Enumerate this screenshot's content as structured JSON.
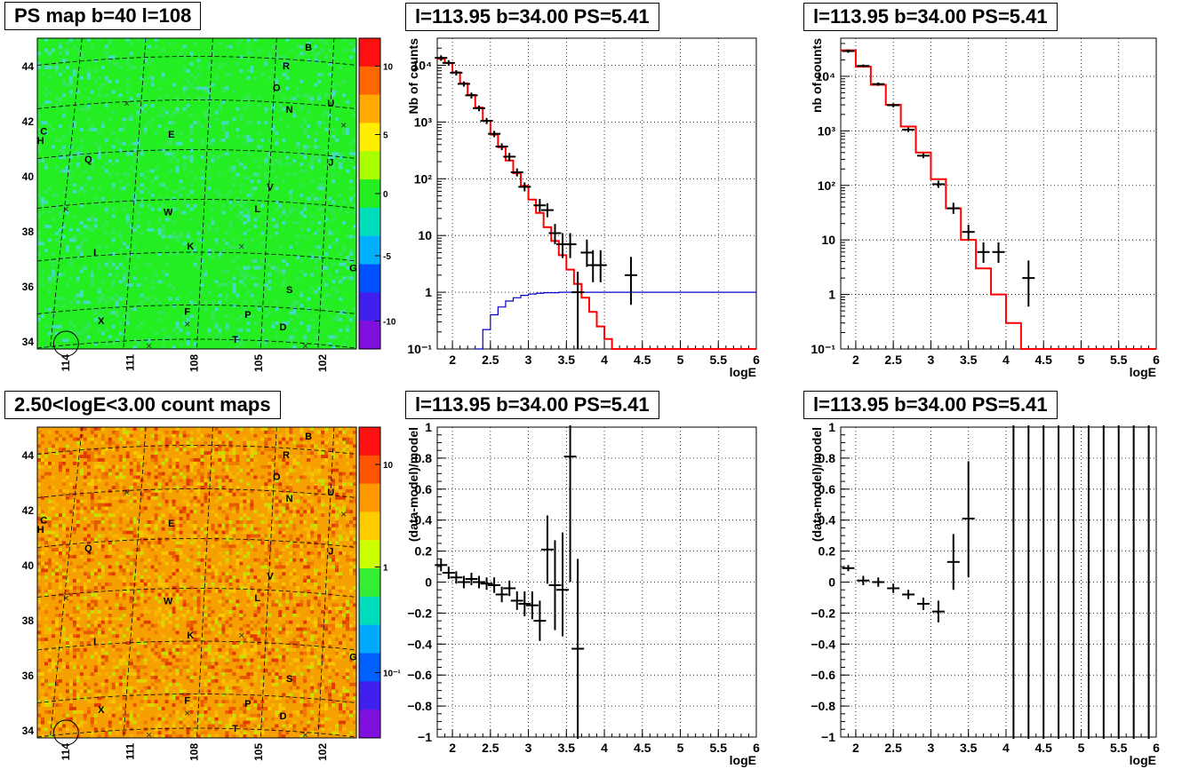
{
  "panels": {
    "ps_map": {
      "title": "PS map b=40 l=108",
      "yticks": [
        "34",
        "36",
        "38",
        "40",
        "42",
        "44"
      ],
      "xticks": [
        "114",
        "111",
        "108",
        "105",
        "102"
      ],
      "colorbar_ticks": [
        "10",
        "5",
        "0",
        "-5",
        "-10"
      ],
      "base_color": "#22ee22"
    },
    "count_map": {
      "title": "2.50<logE<3.00 count maps",
      "yticks": [
        "34",
        "36",
        "38",
        "40",
        "42",
        "44"
      ],
      "xticks": [
        "114",
        "111",
        "108",
        "105",
        "102"
      ],
      "colorbar_ticks": [
        "10",
        "1",
        "10⁻¹"
      ],
      "base_color": "#f5a000"
    },
    "spectrum1": {
      "title": "l=113.95 b=34.00 PS=5.41"
    },
    "spectrum2": {
      "title": "l=113.95 b=34.00 PS=5.41"
    },
    "resid1": {
      "title": "l=113.95 b=34.00 PS=5.41"
    },
    "resid2": {
      "title": "l=113.95 b=34.00 PS=5.41"
    }
  },
  "source_labels": [
    {
      "t": "B",
      "gx": 0.85,
      "gy": 0.04
    },
    {
      "t": "R",
      "gx": 0.78,
      "gy": 0.1
    },
    {
      "t": "O",
      "gx": 0.75,
      "gy": 0.17
    },
    {
      "t": "N",
      "gx": 0.79,
      "gy": 0.24
    },
    {
      "t": "U",
      "gx": 0.92,
      "gy": 0.22
    },
    {
      "t": "C",
      "gx": 0.02,
      "gy": 0.31
    },
    {
      "t": "H",
      "gx": 0.01,
      "gy": 0.34
    },
    {
      "t": "E",
      "gx": 0.42,
      "gy": 0.32
    },
    {
      "t": "Q",
      "gx": 0.16,
      "gy": 0.4
    },
    {
      "t": "J",
      "gx": 0.92,
      "gy": 0.41
    },
    {
      "t": "V",
      "gx": 0.73,
      "gy": 0.49
    },
    {
      "t": "W",
      "gx": 0.41,
      "gy": 0.57
    },
    {
      "t": "L",
      "gx": 0.69,
      "gy": 0.56
    },
    {
      "t": "I",
      "gx": 0.18,
      "gy": 0.7
    },
    {
      "t": "K",
      "gx": 0.48,
      "gy": 0.68
    },
    {
      "t": "G",
      "gx": 0.99,
      "gy": 0.75
    },
    {
      "t": "S",
      "gx": 0.79,
      "gy": 0.82
    },
    {
      "t": "F",
      "gx": 0.47,
      "gy": 0.89
    },
    {
      "t": "P",
      "gx": 0.66,
      "gy": 0.9
    },
    {
      "t": "X",
      "gx": 0.2,
      "gy": 0.92
    },
    {
      "t": "D",
      "gx": 0.77,
      "gy": 0.94
    },
    {
      "t": "T",
      "gx": 0.62,
      "gy": 0.98
    }
  ],
  "chart_data": [
    {
      "type": "line",
      "panel": "spectrum1",
      "title": "l=113.95 b=34.00 PS=5.41",
      "xlabel": "logE",
      "ylabel": "Nb of counts",
      "xlim": [
        1.8,
        6
      ],
      "ylim": [
        0.1,
        30000
      ],
      "yscale": "log",
      "xticks": [
        2,
        2.5,
        3,
        3.5,
        4,
        4.5,
        5,
        5.5,
        6
      ],
      "yticks": [
        {
          "v": 0.1,
          "label": "10⁻¹"
        },
        {
          "v": 1,
          "label": "1"
        },
        {
          "v": 10,
          "label": "10"
        },
        {
          "v": 100,
          "label": "10²"
        },
        {
          "v": 1000,
          "label": "10³"
        },
        {
          "v": 10000,
          "label": "10⁴"
        }
      ],
      "grid": true,
      "series": [
        {
          "style": "step",
          "color": "#ff0000",
          "bins": [
            [
              1.8,
              1.9,
              13000
            ],
            [
              1.9,
              2.0,
              11000
            ],
            [
              2.0,
              2.1,
              7500
            ],
            [
              2.1,
              2.2,
              4800
            ],
            [
              2.2,
              2.3,
              3000
            ],
            [
              2.3,
              2.4,
              1800
            ],
            [
              2.4,
              2.5,
              1050
            ],
            [
              2.5,
              2.6,
              600
            ],
            [
              2.6,
              2.7,
              360
            ],
            [
              2.7,
              2.8,
              210
            ],
            [
              2.8,
              2.9,
              125
            ],
            [
              2.9,
              3.0,
              75
            ],
            [
              3.0,
              3.1,
              43
            ],
            [
              3.1,
              3.2,
              25
            ],
            [
              3.2,
              3.3,
              14
            ],
            [
              3.3,
              3.4,
              8
            ],
            [
              3.4,
              3.5,
              4.5
            ],
            [
              3.5,
              3.6,
              2.5
            ],
            [
              3.6,
              3.7,
              1.4
            ],
            [
              3.7,
              3.8,
              0.8
            ],
            [
              3.8,
              3.9,
              0.45
            ],
            [
              3.9,
              4.0,
              0.25
            ],
            [
              4.0,
              4.1,
              0.15
            ],
            [
              4.1,
              4.2,
              0.1
            ],
            [
              4.2,
              6.0,
              0.1
            ]
          ]
        },
        {
          "style": "step",
          "color": "#0000cc",
          "bins": [
            [
              2.3,
              2.4,
              0.1
            ],
            [
              2.4,
              2.5,
              0.22
            ],
            [
              2.5,
              2.6,
              0.4
            ],
            [
              2.6,
              2.7,
              0.55
            ],
            [
              2.7,
              2.8,
              0.7
            ],
            [
              2.8,
              2.9,
              0.8
            ],
            [
              2.9,
              3.0,
              0.88
            ],
            [
              3.0,
              3.1,
              0.93
            ],
            [
              3.1,
              3.2,
              0.96
            ],
            [
              3.2,
              3.4,
              0.98
            ],
            [
              3.4,
              6.0,
              1.0
            ]
          ]
        },
        {
          "style": "points",
          "color": "#000000",
          "points": [
            [
              1.85,
              13500,
              12000,
              15000
            ],
            [
              1.95,
              11000,
              9800,
              12300
            ],
            [
              2.05,
              7400,
              6600,
              8200
            ],
            [
              2.15,
              4700,
              4200,
              5200
            ],
            [
              2.25,
              2950,
              2600,
              3300
            ],
            [
              2.35,
              1750,
              1550,
              1950
            ],
            [
              2.45,
              1050,
              920,
              1180
            ],
            [
              2.55,
              620,
              540,
              700
            ],
            [
              2.65,
              370,
              320,
              420
            ],
            [
              2.75,
              245,
              205,
              285
            ],
            [
              2.85,
              130,
              110,
              152
            ],
            [
              2.95,
              72,
              60,
              86
            ],
            [
              3.15,
              34,
              26,
              44
            ],
            [
              3.25,
              28,
              21,
              37
            ],
            [
              3.35,
              11,
              7,
              16
            ],
            [
              3.45,
              7,
              4,
              11
            ],
            [
              3.55,
              7,
              4,
              11
            ],
            [
              3.65,
              1.0,
              0.1,
              2.3
            ],
            [
              3.77,
              5,
              2.8,
              8.5
            ],
            [
              3.85,
              3,
              1.5,
              5.5
            ],
            [
              3.95,
              3,
              1.5,
              5.5
            ],
            [
              4.35,
              2,
              0.6,
              4.2
            ]
          ]
        }
      ]
    },
    {
      "type": "line",
      "panel": "spectrum2",
      "title": "l=113.95 b=34.00 PS=5.41",
      "xlabel": "logE",
      "ylabel": "nb of counts",
      "xlim": [
        1.8,
        6
      ],
      "ylim": [
        0.1,
        50000
      ],
      "yscale": "log",
      "xticks": [
        2,
        2.5,
        3,
        3.5,
        4,
        4.5,
        5,
        5.5,
        6
      ],
      "yticks": [
        {
          "v": 0.1,
          "label": "10⁻¹"
        },
        {
          "v": 1,
          "label": "1"
        },
        {
          "v": 10,
          "label": "10"
        },
        {
          "v": 100,
          "label": "10²"
        },
        {
          "v": 1000,
          "label": "10³"
        },
        {
          "v": 10000,
          "label": "10⁴"
        }
      ],
      "grid": true,
      "series": [
        {
          "style": "step",
          "color": "#ff0000",
          "bins": [
            [
              1.8,
              2.0,
              30000
            ],
            [
              2.0,
              2.2,
              15000
            ],
            [
              2.2,
              2.4,
              7000
            ],
            [
              2.4,
              2.6,
              3000
            ],
            [
              2.6,
              2.8,
              1200
            ],
            [
              2.8,
              3.0,
              400
            ],
            [
              3.0,
              3.2,
              130
            ],
            [
              3.2,
              3.4,
              38
            ],
            [
              3.4,
              3.6,
              10
            ],
            [
              3.6,
              3.8,
              3
            ],
            [
              3.8,
              4.0,
              1
            ],
            [
              4.0,
              4.2,
              0.3
            ],
            [
              4.2,
              6.0,
              0.1
            ]
          ]
        },
        {
          "style": "points",
          "color": "#000000",
          "points": [
            [
              1.9,
              29000,
              27000,
              31000
            ],
            [
              2.1,
              15500,
              14500,
              16500
            ],
            [
              2.3,
              7200,
              6700,
              7700
            ],
            [
              2.5,
              2950,
              2700,
              3200
            ],
            [
              2.7,
              1050,
              950,
              1150
            ],
            [
              2.9,
              350,
              315,
              390
            ],
            [
              3.1,
              105,
              90,
              122
            ],
            [
              3.3,
              38,
              30,
              48
            ],
            [
              3.5,
              14,
              10,
              19
            ],
            [
              3.7,
              6,
              3.8,
              9
            ],
            [
              3.9,
              6,
              3.8,
              9
            ],
            [
              4.3,
              2,
              0.6,
              4.2
            ]
          ]
        }
      ]
    },
    {
      "type": "scatter",
      "panel": "resid1",
      "title": "l=113.95 b=34.00 PS=5.41",
      "xlabel": "logE",
      "ylabel": "(data-model)/model",
      "xlim": [
        1.8,
        6
      ],
      "ylim": [
        -1,
        1
      ],
      "xticks": [
        2,
        2.5,
        3,
        3.5,
        4,
        4.5,
        5,
        5.5,
        6
      ],
      "yticks": [
        {
          "v": -1,
          "label": "−1"
        },
        {
          "v": -0.8,
          "label": "−0.8"
        },
        {
          "v": -0.6,
          "label": "−0.6"
        },
        {
          "v": -0.4,
          "label": "−0.4"
        },
        {
          "v": -0.2,
          "label": "−0.2"
        },
        {
          "v": 0,
          "label": "0"
        },
        {
          "v": 0.2,
          "label": "0.2"
        },
        {
          "v": 0.4,
          "label": "0.4"
        },
        {
          "v": 0.6,
          "label": "0.6"
        },
        {
          "v": 0.8,
          "label": "0.8"
        },
        {
          "v": 1,
          "label": "1"
        }
      ],
      "grid": true,
      "series": [
        {
          "style": "points",
          "color": "#000000",
          "points": [
            [
              1.85,
              0.11,
              0.07,
              0.15
            ],
            [
              1.95,
              0.06,
              0.02,
              0.1
            ],
            [
              2.05,
              0.03,
              -0.01,
              0.07
            ],
            [
              2.15,
              0.0,
              -0.04,
              0.04
            ],
            [
              2.25,
              0.02,
              -0.02,
              0.06
            ],
            [
              2.35,
              0.0,
              -0.04,
              0.04
            ],
            [
              2.45,
              -0.01,
              -0.05,
              0.03
            ],
            [
              2.55,
              -0.02,
              -0.07,
              0.03
            ],
            [
              2.65,
              -0.08,
              -0.13,
              -0.03
            ],
            [
              2.75,
              -0.04,
              -0.09,
              0.01
            ],
            [
              2.85,
              -0.12,
              -0.18,
              -0.06
            ],
            [
              2.95,
              -0.14,
              -0.22,
              -0.06
            ],
            [
              3.05,
              -0.15,
              -0.24,
              -0.06
            ],
            [
              3.15,
              -0.25,
              -0.38,
              -0.12
            ],
            [
              3.25,
              0.21,
              -0.01,
              0.43
            ],
            [
              3.35,
              -0.02,
              -0.31,
              0.27
            ],
            [
              3.45,
              -0.05,
              -0.35,
              0.32
            ],
            [
              3.55,
              0.81,
              0.0,
              1.1
            ],
            [
              3.65,
              -0.43,
              -1.1,
              0.15
            ]
          ]
        }
      ]
    },
    {
      "type": "scatter",
      "panel": "resid2",
      "title": "l=113.95 b=34.00 PS=5.41",
      "xlabel": "logE",
      "ylabel": "(data-model)/model",
      "xlim": [
        1.8,
        6
      ],
      "ylim": [
        -1,
        1
      ],
      "xticks": [
        2,
        2.5,
        3,
        3.5,
        4,
        4.5,
        5,
        5.5,
        6
      ],
      "yticks": [
        {
          "v": -1,
          "label": "−1"
        },
        {
          "v": -0.8,
          "label": "−0.8"
        },
        {
          "v": -0.6,
          "label": "−0.6"
        },
        {
          "v": -0.4,
          "label": "−0.4"
        },
        {
          "v": -0.2,
          "label": "−0.2"
        },
        {
          "v": 0,
          "label": "0"
        },
        {
          "v": 0.2,
          "label": "0.2"
        },
        {
          "v": 0.4,
          "label": "0.4"
        },
        {
          "v": 0.6,
          "label": "0.6"
        },
        {
          "v": 0.8,
          "label": "0.8"
        },
        {
          "v": 1,
          "label": "1"
        }
      ],
      "grid": true,
      "series": [
        {
          "style": "points",
          "color": "#000000",
          "points": [
            [
              1.9,
              0.09,
              0.07,
              0.11
            ],
            [
              2.1,
              0.01,
              -0.02,
              0.04
            ],
            [
              2.3,
              0.0,
              -0.03,
              0.03
            ],
            [
              2.5,
              -0.04,
              -0.07,
              -0.01
            ],
            [
              2.7,
              -0.08,
              -0.11,
              -0.05
            ],
            [
              2.9,
              -0.14,
              -0.18,
              -0.1
            ],
            [
              3.1,
              -0.19,
              -0.26,
              -0.12
            ],
            [
              3.3,
              0.13,
              -0.05,
              0.31
            ],
            [
              3.5,
              0.41,
              0.03,
              0.78
            ],
            [
              4.1,
              null,
              -1.1,
              1.1
            ],
            [
              4.3,
              null,
              -1.1,
              1.1
            ],
            [
              4.5,
              null,
              -1.1,
              1.1
            ],
            [
              4.7,
              null,
              -1.1,
              1.1
            ],
            [
              4.9,
              null,
              -1.1,
              1.1
            ],
            [
              5.1,
              null,
              -1.1,
              1.1
            ],
            [
              5.3,
              null,
              -1.1,
              1.1
            ],
            [
              5.5,
              null,
              -1.1,
              1.1
            ],
            [
              5.7,
              null,
              -1.1,
              1.1
            ],
            [
              5.9,
              null,
              -1.1,
              1.1
            ]
          ]
        }
      ]
    }
  ]
}
